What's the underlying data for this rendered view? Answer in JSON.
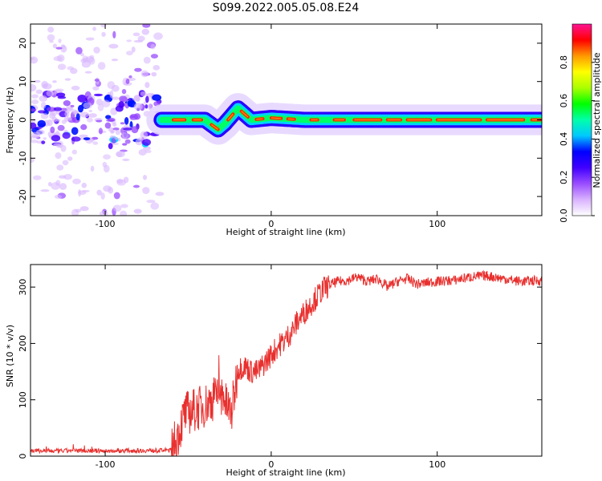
{
  "title": "S099.2022.005.05.08.E24",
  "chart_data": [
    {
      "type": "heatmap",
      "xlabel": "Height of straight line (km)",
      "ylabel": "Frequency (Hz)",
      "xlim": [
        -145,
        163
      ],
      "ylim": [
        -25,
        25
      ],
      "xticks": [
        -100,
        0,
        100
      ],
      "yticks": [
        -20,
        -10,
        0,
        10,
        20
      ],
      "colorbar": {
        "label": "Normalized spectral amplitude",
        "range": [
          0,
          1
        ],
        "ticks": [
          "0.0",
          "0.2",
          "0.4",
          "0.6",
          "0.8"
        ],
        "colors": [
          "#ffffff",
          "#d9b3ff",
          "#9a4dff",
          "#4000ff",
          "#0000ff",
          "#00c8ff",
          "#00ffaa",
          "#00ff00",
          "#aaff00",
          "#ffff00",
          "#ff9900",
          "#ff0000",
          "#ff1493"
        ]
      },
      "features": [
        {
          "name": "noise",
          "x_range": [
            -145,
            -66
          ],
          "frequency_spread": [
            -25,
            25
          ]
        },
        {
          "name": "signal",
          "x_range": [
            -66,
            163
          ],
          "center_frequency": [
            [
              -66,
              0
            ],
            [
              -40,
              0
            ],
            [
              -32,
              -2.5
            ],
            [
              -28,
              -1
            ],
            [
              -20,
              3
            ],
            [
              -12,
              0
            ],
            [
              0,
              0.5
            ],
            [
              20,
              0
            ],
            [
              160,
              0
            ]
          ]
        }
      ]
    },
    {
      "type": "line",
      "xlabel": "Height of straight line (km)",
      "ylabel": "SNR (10 * v/v)",
      "xlim": [
        -145,
        163
      ],
      "ylim": [
        0,
        340
      ],
      "xticks": [
        -100,
        0,
        100
      ],
      "yticks": [
        0,
        100,
        200,
        300
      ],
      "color": "#e8302e",
      "series": [
        {
          "x": [
            -145,
            -130,
            -115,
            -100,
            -85,
            -70,
            -60,
            -56,
            -52,
            -48,
            -44,
            -40,
            -36,
            -32,
            -28,
            -24,
            -20,
            -16,
            -12,
            -8,
            -4,
            0,
            4,
            8,
            12,
            16,
            20,
            24,
            28,
            32,
            36,
            40,
            46,
            52,
            58,
            64,
            70,
            76,
            82,
            88,
            94,
            100,
            110,
            120,
            130,
            140,
            150,
            163
          ],
          "y": [
            10,
            9,
            10,
            9,
            10,
            10,
            11,
            40,
            75,
            80,
            85,
            90,
            100,
            110,
            95,
            75,
            155,
            160,
            150,
            150,
            165,
            180,
            195,
            205,
            220,
            240,
            255,
            270,
            285,
            298,
            305,
            310,
            312,
            318,
            310,
            315,
            300,
            310,
            315,
            305,
            308,
            310,
            312,
            318,
            320,
            315,
            310,
            312
          ]
        }
      ]
    }
  ]
}
